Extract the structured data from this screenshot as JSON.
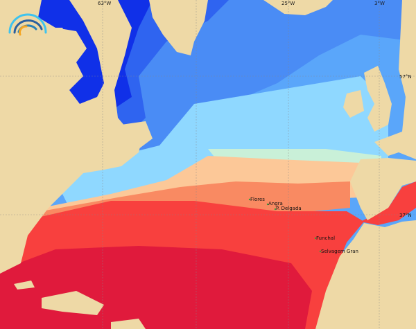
{
  "grid_labels": {
    "lon": [
      "63°W",
      "25°W",
      "3°W"
    ],
    "lat": [
      "57°N",
      "37°N"
    ]
  },
  "places": [
    "Flores",
    "Angra",
    "P. Delgada",
    "Funchal",
    "Selvagem Gran"
  ],
  "colors": {
    "land": "#eed9a6",
    "deep_blue": "#1030e8",
    "blue": "#2f64f0",
    "mid_blue": "#4a8cf5",
    "light_blue": "#5aa6fa",
    "cyan": "#8fd8ff",
    "pale": "#c9f0d8",
    "peach": "#fcc898",
    "orange": "#f98a62",
    "red": "#f8403e",
    "deep_red": "#e01a3c",
    "place_marker": "#3a9a3a"
  },
  "logo": {
    "icon": "wave-arc-logo"
  }
}
